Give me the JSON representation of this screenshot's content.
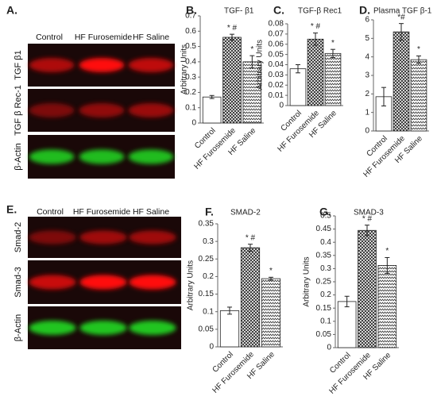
{
  "blots": [
    {
      "panel_label": "A.",
      "lanes": [
        "Control",
        "HF Furosemide",
        "HF Saline"
      ],
      "rows": [
        "TGF β1",
        "TGF β Rec-1",
        "β-Actin"
      ]
    },
    {
      "panel_label": "E.",
      "lanes": [
        "Control",
        "HF Furosemide",
        "HF Saline"
      ],
      "rows": [
        "Smad-2",
        "Smad-3",
        "β-Actin"
      ]
    }
  ],
  "chart_data": [
    {
      "type": "bar",
      "panel_label": "B.",
      "title": "TGF- β1",
      "y_label": "Arbitrary Units",
      "categories": [
        "Control",
        "HF Furosemide",
        "HF Saline"
      ],
      "values": [
        0.17,
        0.56,
        0.4
      ],
      "errors": [
        0.01,
        0.02,
        0.04
      ],
      "bar_labels": [
        null,
        "* #",
        "*"
      ],
      "ylim": [
        0,
        0.7
      ],
      "yticks": [
        0,
        0.1,
        0.2,
        0.3,
        0.4,
        0.5,
        0.6,
        0.7
      ]
    },
    {
      "type": "bar",
      "panel_label": "C.",
      "title": "TGF-β Rec1",
      "y_label": "Arbitrary Units",
      "categories": [
        "Control",
        "HF Furosemide",
        "HF Saline"
      ],
      "values": [
        0.036,
        0.065,
        0.051
      ],
      "errors": [
        0.004,
        0.006,
        0.004
      ],
      "bar_labels": [
        null,
        "* #",
        "*"
      ],
      "ylim": [
        0,
        0.08
      ],
      "yticks": [
        0,
        0.01,
        0.02,
        0.03,
        0.04,
        0.05,
        0.06,
        0.07,
        0.08
      ]
    },
    {
      "type": "bar",
      "panel_label": "D.",
      "title": "Plasma TGF β-1",
      "categories": [
        "Control",
        "HF Furosemide",
        "HF Saline"
      ],
      "values": [
        1.85,
        5.35,
        3.85
      ],
      "errors": [
        0.5,
        0.45,
        0.2
      ],
      "bar_labels": [
        null,
        "*#",
        "*"
      ],
      "ylim": [
        0,
        6
      ],
      "yticks": [
        0,
        1,
        2,
        3,
        4,
        5,
        6
      ]
    },
    {
      "type": "bar",
      "panel_label": "F.",
      "title": "SMAD-2",
      "y_label": "Arbitrary Units",
      "categories": [
        "Control",
        "HF Furosemide",
        "HF Saline"
      ],
      "values": [
        0.103,
        0.282,
        0.194
      ],
      "errors": [
        0.01,
        0.01,
        0.004
      ],
      "bar_labels": [
        null,
        "* #",
        "*"
      ],
      "ylim": [
        0,
        0.35
      ],
      "yticks": [
        0,
        0.05,
        0.1,
        0.15,
        0.2,
        0.25,
        0.3,
        0.35
      ]
    },
    {
      "type": "bar",
      "panel_label": "G.",
      "title": "SMAD-3",
      "y_label": "Arbitrary Units",
      "categories": [
        "Control",
        "HF Furosemide",
        "HF Saline"
      ],
      "values": [
        0.175,
        0.445,
        0.312
      ],
      "errors": [
        0.02,
        0.02,
        0.03
      ],
      "bar_labels": [
        null,
        "* #",
        "*"
      ],
      "ylim": [
        0,
        0.5
      ],
      "yticks": [
        0,
        0.05,
        0.1,
        0.15,
        0.2,
        0.25,
        0.3,
        0.35,
        0.4,
        0.45,
        0.5
      ]
    }
  ]
}
